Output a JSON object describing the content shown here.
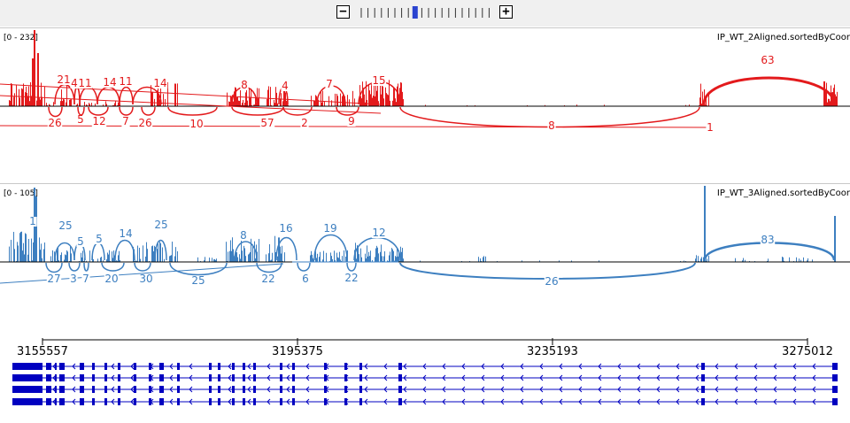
{
  "zoom": {
    "minus_label": "−",
    "plus_label": "+",
    "levels": 20,
    "current_level": 8
  },
  "tracks": [
    {
      "name": "IP_WT_2Aligned.sortedByCoor",
      "range": "[0 - 232]",
      "color": "#e31a1c",
      "junction_labels": [
        "21",
        "4",
        "11",
        "14",
        "11",
        "14",
        "8",
        "4",
        "7",
        "15",
        "63",
        "26",
        "5",
        "12",
        "7",
        "26",
        "10",
        "57",
        "2",
        "9",
        "8",
        "1"
      ]
    },
    {
      "name": "IP_WT_3Aligned.sortedByCoor",
      "range": "[0 - 105]",
      "color": "#3d7fc0",
      "junction_labels": [
        "1",
        "25",
        "5",
        "5",
        "14",
        "25",
        "8",
        "16",
        "19",
        "12",
        "83",
        "27",
        "3",
        "7",
        "20",
        "30",
        "25",
        "22",
        "6",
        "22",
        "26"
      ]
    }
  ],
  "ruler": {
    "ticks": [
      "3155557",
      "3195375",
      "3235193",
      "3275012"
    ]
  },
  "gene": {
    "color": "#0000c0",
    "transcript_count": 4
  }
}
